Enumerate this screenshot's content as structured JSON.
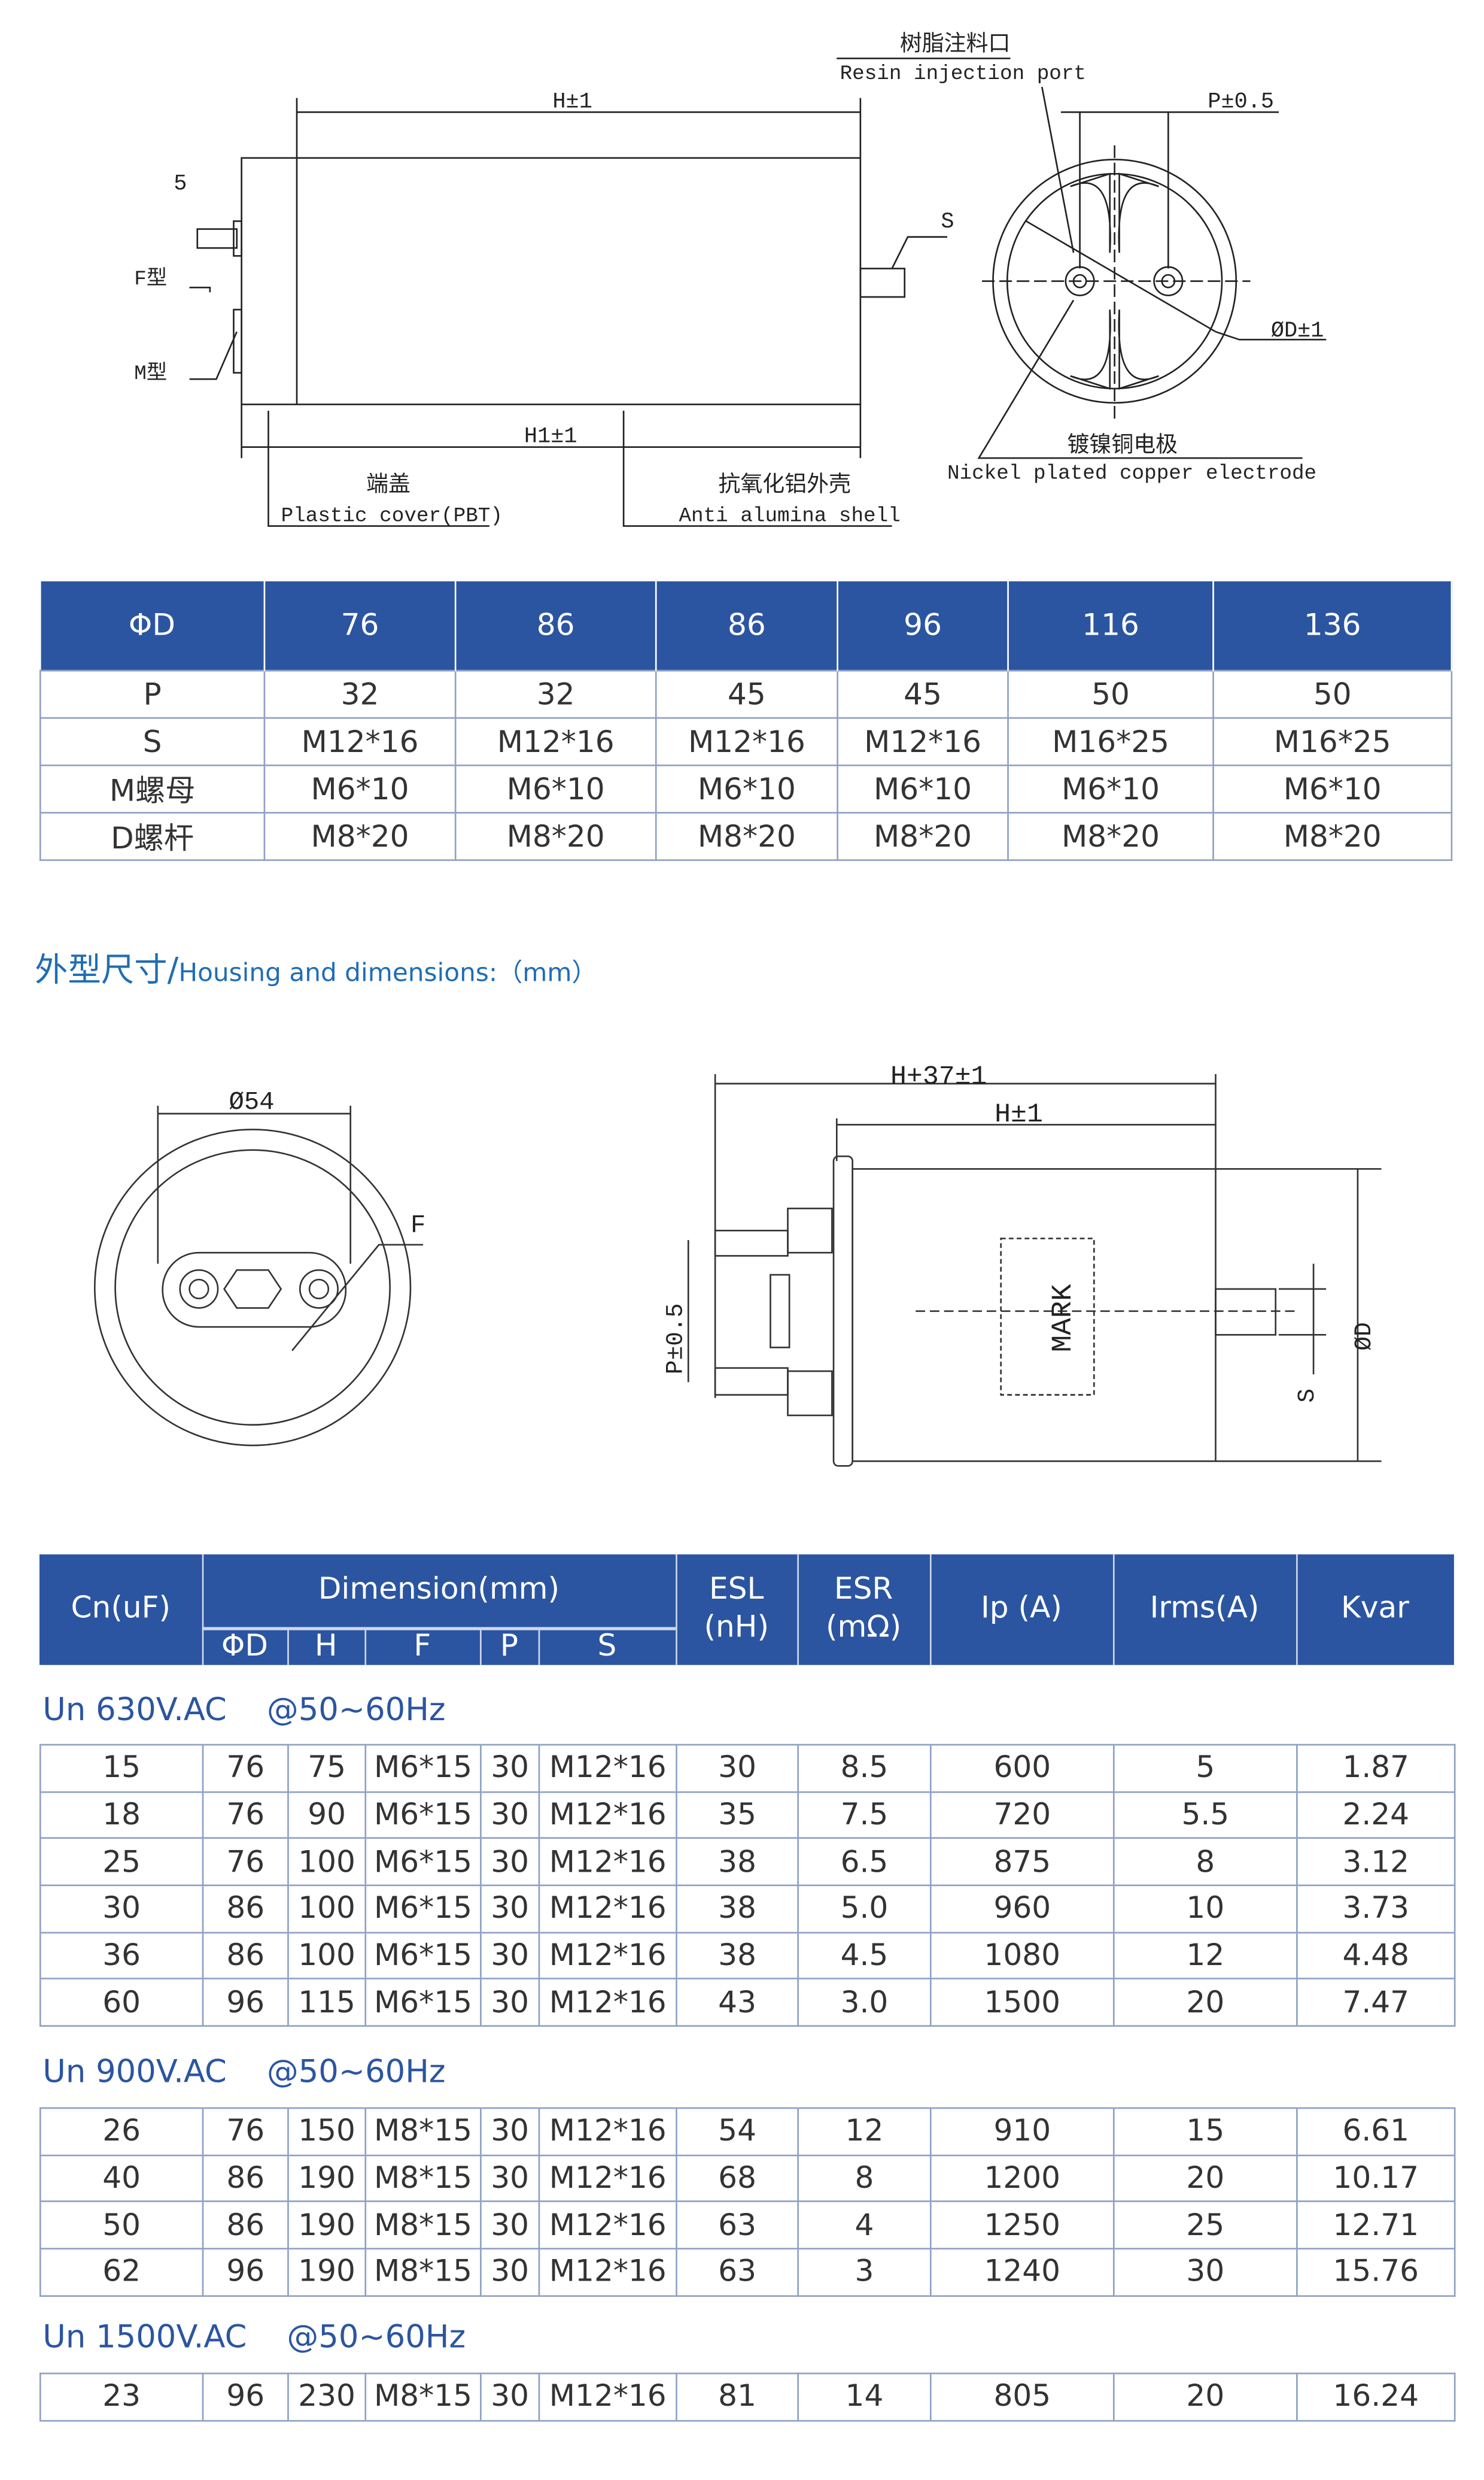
{
  "drawing_top": {
    "resin_cn": "树脂注料口",
    "resin_en": "Resin injection port",
    "h": "H±1",
    "p": "P±0.5",
    "five": "5",
    "s": "S",
    "f_type": "F型",
    "m_type": "M型",
    "d": "ØD±1",
    "h1": "H1±1",
    "cover_cn": "端盖",
    "cover_en": "Plastic cover(PBT)",
    "shell_cn": "抗氧化铝外壳",
    "shell_en": "Anti alumina shell",
    "electrode_cn": "镀镍铜电极",
    "electrode_en": "Nickel plated copper electrode"
  },
  "table_top": {
    "header": [
      "ΦD",
      "76",
      "86",
      "86",
      "96",
      "116",
      "136"
    ],
    "rows": [
      [
        "P",
        "32",
        "32",
        "45",
        "45",
        "50",
        "50"
      ],
      [
        "S",
        "M12*16",
        "M12*16",
        "M12*16",
        "M12*16",
        "M16*25",
        "M16*25"
      ],
      [
        "M螺母",
        "M6*10",
        "M6*10",
        "M6*10",
        "M6*10",
        "M6*10",
        "M6*10"
      ],
      [
        "D螺杆",
        "M8*20",
        "M8*20",
        "M8*20",
        "M8*20",
        "M8*20",
        "M8*20"
      ]
    ]
  },
  "section": {
    "title_cn": "外型尺寸/",
    "title_en": "Housing and dimensions:（mm）"
  },
  "drawing_bottom": {
    "d54": "Ø54",
    "f": "F",
    "h37": "H+37±1",
    "h": "H±1",
    "mark": "MARK",
    "p": "P±0.5",
    "s": "S",
    "d": "ØD"
  },
  "main_table": {
    "headers": {
      "cn": "Cn(uF)",
      "dimension": "Dimension(mm)",
      "d": "ΦD",
      "h": "H",
      "f": "F",
      "p": "P",
      "s": "S",
      "esl": "ESL\n(nH)",
      "esr": "ESR\n(mΩ)",
      "ip": "Ip (A)",
      "irms": "Irms(A)",
      "kvar": "Kvar"
    },
    "groups": [
      {
        "label": "Un 630V.AC    @50~60Hz",
        "rows": [
          [
            "15",
            "76",
            "75",
            "M6*15",
            "30",
            "M12*16",
            "30",
            "8.5",
            "600",
            "5",
            "1.87"
          ],
          [
            "18",
            "76",
            "90",
            "M6*15",
            "30",
            "M12*16",
            "35",
            "7.5",
            "720",
            "5.5",
            "2.24"
          ],
          [
            "25",
            "76",
            "100",
            "M6*15",
            "30",
            "M12*16",
            "38",
            "6.5",
            "875",
            "8",
            "3.12"
          ],
          [
            "30",
            "86",
            "100",
            "M6*15",
            "30",
            "M12*16",
            "38",
            "5.0",
            "960",
            "10",
            "3.73"
          ],
          [
            "36",
            "86",
            "100",
            "M6*15",
            "30",
            "M12*16",
            "38",
            "4.5",
            "1080",
            "12",
            "4.48"
          ],
          [
            "60",
            "96",
            "115",
            "M6*15",
            "30",
            "M12*16",
            "43",
            "3.0",
            "1500",
            "20",
            "7.47"
          ]
        ]
      },
      {
        "label": "Un 900V.AC    @50~60Hz",
        "rows": [
          [
            "26",
            "76",
            "150",
            "M8*15",
            "30",
            "M12*16",
            "54",
            "12",
            "910",
            "15",
            "6.61"
          ],
          [
            "40",
            "86",
            "190",
            "M8*15",
            "30",
            "M12*16",
            "68",
            "8",
            "1200",
            "20",
            "10.17"
          ],
          [
            "50",
            "86",
            "190",
            "M8*15",
            "30",
            "M12*16",
            "63",
            "4",
            "1250",
            "25",
            "12.71"
          ],
          [
            "62",
            "96",
            "190",
            "M8*15",
            "30",
            "M12*16",
            "63",
            "3",
            "1240",
            "30",
            "15.76"
          ]
        ]
      },
      {
        "label": "Un 1500V.AC    @50~60Hz",
        "rows": [
          [
            "23",
            "96",
            "230",
            "M8*15",
            "30",
            "M12*16",
            "81",
            "14",
            "805",
            "20",
            "16.24"
          ]
        ]
      }
    ]
  },
  "colors": {
    "header_bg": "#2b55a1",
    "group_label": "#2b55a1",
    "title": "#1f6db5",
    "border": "#8ea0c4"
  }
}
